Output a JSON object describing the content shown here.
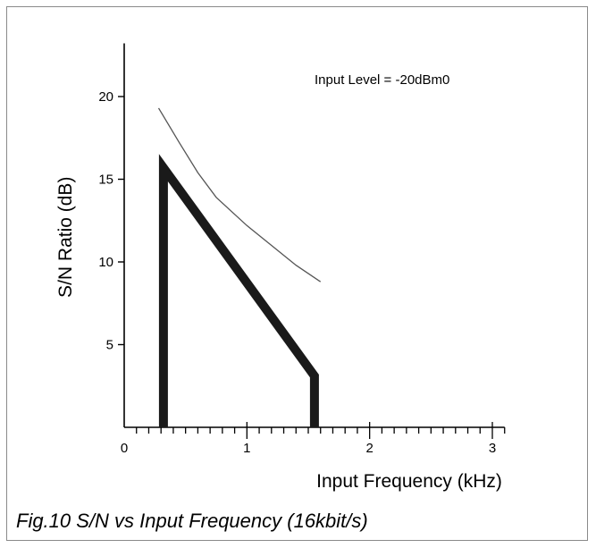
{
  "chart_data": {
    "type": "line",
    "title": "",
    "caption": "Fig.10 S/N vs Input Frequency (16kbit/s)",
    "xlabel": "Input Frequency (kHz)",
    "ylabel": "S/N Ratio (dB)",
    "annotation": "Input Level = -20dBm0",
    "xlim": [
      0,
      3.1
    ],
    "ylim": [
      0,
      23
    ],
    "x_ticks": [
      0,
      1,
      2,
      3
    ],
    "y_ticks": [
      5,
      10,
      15,
      20
    ],
    "x_minor_step": 0.1,
    "grid": false,
    "series": [
      {
        "style": "thin",
        "color": "#555555",
        "points": [
          [
            0.28,
            19.3
          ],
          [
            0.45,
            17.2
          ],
          [
            0.6,
            15.4
          ],
          [
            0.75,
            13.9
          ],
          [
            1.0,
            12.2
          ],
          [
            1.2,
            11.0
          ],
          [
            1.4,
            9.8
          ],
          [
            1.6,
            8.8
          ]
        ]
      },
      {
        "style": "thick",
        "color": "#1a1a1a",
        "points": [
          [
            0.32,
            0
          ],
          [
            0.32,
            15.7
          ],
          [
            1.55,
            3.1
          ],
          [
            1.55,
            0
          ]
        ]
      }
    ]
  }
}
